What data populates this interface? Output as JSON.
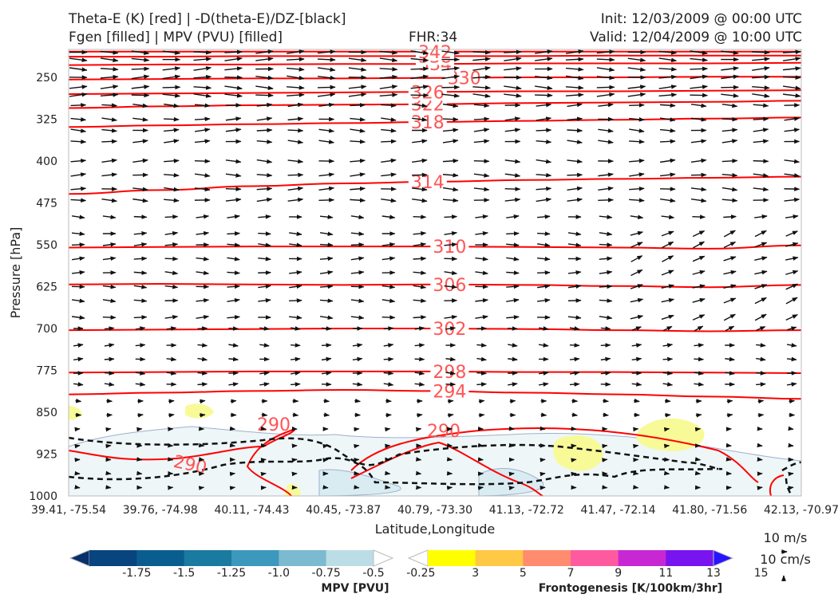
{
  "header": {
    "title_left_line1": "Theta-E (K) [red] | -D(theta-E)/DZ-[black]",
    "title_left_line2": "Fgen [filled] | MPV (PVU) [filled]",
    "fhr": "FHR:34",
    "init": "Init: 12/03/2009 @ 00:00 UTC",
    "valid": "Valid: 12/04/2009 @ 10:00 UTC"
  },
  "chart_data": {
    "type": "cross-section",
    "xlabel": "Latitude,Longitude",
    "ylabel": "Pressure [hPa]",
    "x_ticks": [
      "39.41, -75.54",
      "39.76, -74.98",
      "40.11, -74.43",
      "40.45, -73.87",
      "40.79, -73.30",
      "41.13, -72.72",
      "41.47, -72.14",
      "41.80, -71.56",
      "42.13, -70.97"
    ],
    "y_ticks": [
      250,
      325,
      400,
      475,
      550,
      625,
      700,
      775,
      850,
      925,
      1000
    ],
    "ylim": [
      1000,
      200
    ],
    "y_scale": "linear-inverted",
    "theta_e_contours": [
      {
        "value": "290",
        "label_positions": [
          "41.00, -73.3 at 890 hPa",
          "40.0, -74.6 at 880 hPa",
          "39.8, -74.9 at 960 hPa"
        ]
      },
      {
        "value": "294",
        "level_hPa": [
          818,
          815,
          812,
          810,
          812,
          815,
          818,
          822,
          826
        ]
      },
      {
        "value": "298",
        "level_hPa": [
          779,
          778,
          777,
          777,
          777,
          778,
          778,
          779,
          780
        ]
      },
      {
        "value": "302",
        "level_hPa": [
          703,
          702,
          701,
          700,
          700,
          701,
          703,
          705,
          703
        ]
      },
      {
        "value": "306",
        "level_hPa": [
          621,
          620,
          621,
          622,
          621,
          622,
          624,
          626,
          622
        ]
      },
      {
        "value": "310",
        "level_hPa": [
          555,
          554,
          553,
          553,
          553,
          554,
          555,
          557,
          551
        ]
      },
      {
        "value": "314",
        "level_hPa": [
          459,
          452,
          445,
          440,
          437,
          434,
          432,
          430,
          428
        ]
      },
      {
        "value": "318",
        "level_hPa": [
          339,
          336,
          334,
          332,
          330,
          328,
          326,
          324,
          322
        ]
      },
      {
        "value": "322",
        "level_hPa": [
          305,
          302,
          300,
          299,
          298,
          296,
          295,
          294,
          292
        ]
      },
      {
        "value": "326",
        "level_hPa": [
          280,
          279,
          278,
          277,
          276,
          275,
          275,
          274,
          273
        ]
      },
      {
        "value": "330",
        "level_hPa": [
          254,
          253,
          252,
          252,
          251,
          250,
          250,
          249,
          249
        ]
      },
      {
        "value": "334",
        "level_hPa": [
          228,
          227,
          227,
          226,
          226,
          225,
          225,
          225,
          224
        ]
      },
      {
        "value": "338",
        "level_hPa": [
          213,
          213,
          212,
          212,
          212,
          212,
          211,
          211,
          211
        ]
      },
      {
        "value": "342",
        "level_hPa": [
          204,
          204,
          204,
          204,
          204,
          204,
          204,
          204,
          204
        ]
      }
    ],
    "wind_vectors_note": "mostly eastward arrows, stronger aloft, weak near surface",
    "frontogenesis_filled_areas": [
      "yellow patches near 860 hPa at 39.4 and 40.2",
      "yellow patches 870-940 hPa near 41.5-41.9"
    ],
    "mpv_filled_areas": [
      "light blue shading below ~880 hPa across section"
    ],
    "reference_vectors": [
      "10 m/s",
      "10 cm/s"
    ]
  },
  "colorbars": {
    "mpv": {
      "label": "MPV [PVU]",
      "ticks": [
        "-1.75",
        "-1.5",
        "-1.25",
        "-1.0",
        "-0.75",
        "-0.5",
        "-0.25"
      ],
      "colors": [
        "#08306b",
        "#08457e",
        "#0a5e8f",
        "#1a7aa0",
        "#3c98bc",
        "#7cbad1",
        "#bcdde6",
        "#ffffff"
      ]
    },
    "fgen": {
      "label": "Frontogenesis [K/100km/3hr]",
      "ticks": [
        "3",
        "5",
        "7",
        "9",
        "11",
        "13",
        "15"
      ],
      "colors": [
        "#ffffff",
        "#ffff00",
        "#ffc845",
        "#ff8c6e",
        "#ff5aa0",
        "#c828d2",
        "#7814f0",
        "#2814ff"
      ]
    }
  },
  "colors": {
    "theta_e": "#ff0000",
    "contour_label": "#ff5555",
    "vectors": "#111111"
  }
}
